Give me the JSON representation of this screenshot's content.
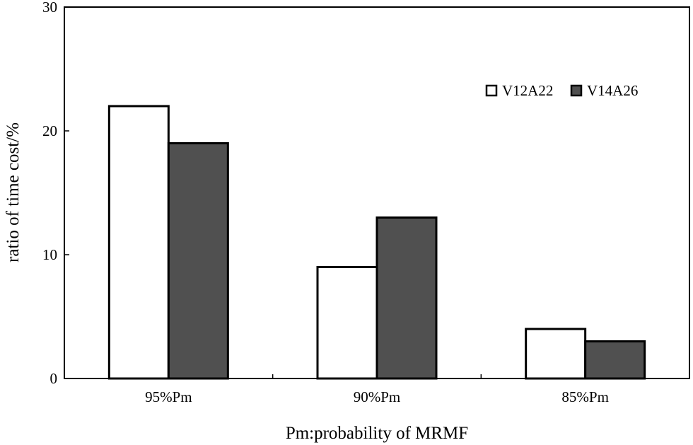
{
  "chart_data": {
    "type": "bar",
    "title": "",
    "xlabel": "Pm:probability of MRMF",
    "ylabel": "ratio of time cost/%",
    "categories": [
      "95%Pm",
      "90%Pm",
      "85%Pm"
    ],
    "series": [
      {
        "name": "V12A22",
        "values": [
          22,
          9,
          4
        ],
        "color": "#ffffff"
      },
      {
        "name": "V14A26",
        "values": [
          19,
          13,
          3
        ],
        "color": "#505050"
      }
    ],
    "ylim": [
      0,
      30
    ],
    "yticks": [
      0,
      10,
      20,
      30
    ],
    "grid": false,
    "legend_position": "top-right"
  }
}
